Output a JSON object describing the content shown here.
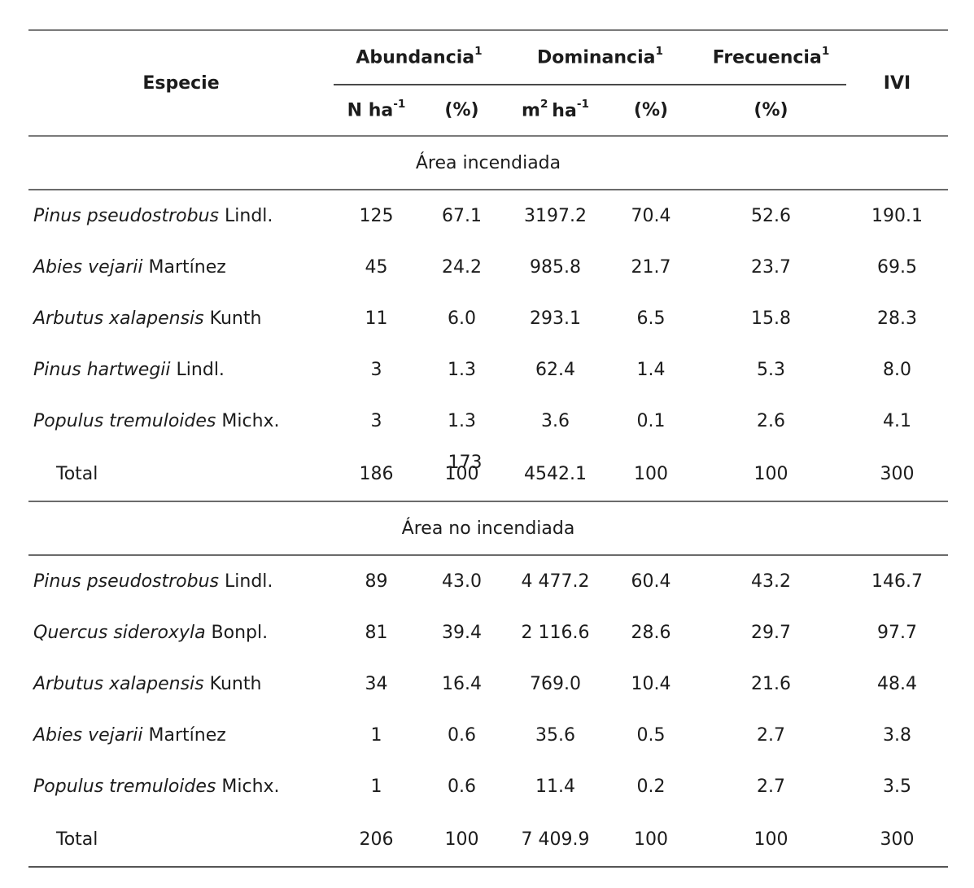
{
  "header": {
    "especie": "Especie",
    "ivi": "IVI",
    "groups": [
      {
        "label": "Abundancia",
        "sup": "1"
      },
      {
        "label": "Dominancia",
        "sup": "1"
      },
      {
        "label": "Frecuencia",
        "sup": "1"
      }
    ],
    "sub": {
      "n_base": "N ha",
      "n_sup": "-1",
      "pct1": "(%)",
      "m_base": "m",
      "m_sup": "2",
      "ha_base": "ha",
      "ha_sup": "-1",
      "pct2": "(%)",
      "pct3": "(%)"
    }
  },
  "sections": [
    {
      "title": "Área incendiada",
      "rows": [
        {
          "species": "Pinus pseudostrobus",
          "author": "Lindl.",
          "n": "125",
          "n_pct": "67.1",
          "dom": "3197.2",
          "dom_pct": "70.4",
          "frec": "52.6",
          "ivi": "190.1"
        },
        {
          "species": "Abies vejarii",
          "author": "Martínez",
          "n": "45",
          "n_pct": "24.2",
          "dom": "985.8",
          "dom_pct": "21.7",
          "frec": "23.7",
          "ivi": "69.5"
        },
        {
          "species": "Arbutus xalapensis",
          "author": "Kunth",
          "n": "11",
          "n_pct": "6.0",
          "dom": "293.1",
          "dom_pct": "6.5",
          "frec": "15.8",
          "ivi": "28.3"
        },
        {
          "species": "Pinus hartwegii",
          "author": "Lindl.",
          "n": "3",
          "n_pct": "1.3",
          "dom": "62.4",
          "dom_pct": "1.4",
          "frec": "5.3",
          "ivi": "8.0"
        },
        {
          "species": "Populus tremuloides",
          "author": "Michx.",
          "n": "3",
          "n_pct": "1.3",
          "dom": "3.6",
          "dom_pct": "0.1",
          "frec": "2.6",
          "ivi": "4.1"
        }
      ],
      "total": {
        "label": "Total",
        "n": "186",
        "n_pct": "100",
        "overlapping_page_number": "173",
        "dom": "4542.1",
        "dom_pct": "100",
        "frec": "100",
        "ivi": "300"
      }
    },
    {
      "title": "Área no incendiada",
      "rows": [
        {
          "species": "Pinus pseudostrobus",
          "author": "Lindl.",
          "n": "89",
          "n_pct": "43.0",
          "dom": "4 477.2",
          "dom_pct": "60.4",
          "frec": "43.2",
          "ivi": "146.7"
        },
        {
          "species": "Quercus sideroxyla",
          "author": "Bonpl.",
          "n": "81",
          "n_pct": "39.4",
          "dom": "2 116.6",
          "dom_pct": "28.6",
          "frec": "29.7",
          "ivi": "97.7"
        },
        {
          "species": "Arbutus xalapensis",
          "author": "Kunth",
          "n": "34",
          "n_pct": "16.4",
          "dom": "769.0",
          "dom_pct": "10.4",
          "frec": "21.6",
          "ivi": "48.4"
        },
        {
          "species": "Abies vejarii",
          "author": "Martínez",
          "n": "1",
          "n_pct": "0.6",
          "dom": "35.6",
          "dom_pct": "0.5",
          "frec": "2.7",
          "ivi": "3.8"
        },
        {
          "species": "Populus tremuloides",
          "author": "Michx.",
          "n": "1",
          "n_pct": "0.6",
          "dom": "11.4",
          "dom_pct": "0.2",
          "frec": "2.7",
          "ivi": "3.5"
        }
      ],
      "total": {
        "label": "Total",
        "n": "206",
        "n_pct": "100",
        "dom": "7 409.9",
        "dom_pct": "100",
        "frec": "100",
        "ivi": "300"
      }
    }
  ]
}
